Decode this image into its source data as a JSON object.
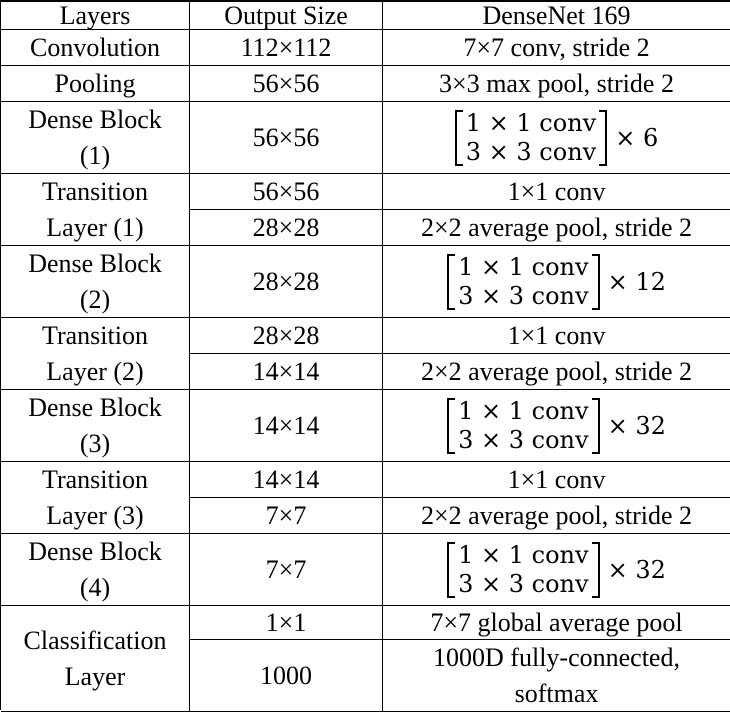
{
  "header": {
    "layers": "Layers",
    "output_size": "Output Size",
    "model": "DenseNet 169"
  },
  "rows": {
    "convolution": {
      "layer": "Convolution",
      "size": "112×112",
      "op": "7×7 conv, stride 2"
    },
    "pooling": {
      "layer": "Pooling",
      "size": "56×56",
      "op": "3×3 max pool, stride 2"
    },
    "dense1": {
      "layer_l1": "Dense Block",
      "layer_l2": "(1)",
      "size": "56×56",
      "m1": "1 × 1 conv",
      "m2": "3 × 3 conv",
      "rep": "× 6"
    },
    "trans1": {
      "layer_l1": "Transition",
      "layer_l2": "Layer (1)",
      "size_a": "56×56",
      "op_a": "1×1 conv",
      "size_b": "28×28",
      "op_b": "2×2 average pool, stride 2"
    },
    "dense2": {
      "layer_l1": "Dense Block",
      "layer_l2": "(2)",
      "size": "28×28",
      "m1": "1 × 1 conv",
      "m2": "3 × 3 conv",
      "rep": "× 12"
    },
    "trans2": {
      "layer_l1": "Transition",
      "layer_l2": "Layer (2)",
      "size_a": "28×28",
      "op_a": "1×1 conv",
      "size_b": "14×14",
      "op_b": "2×2 average pool, stride 2"
    },
    "dense3": {
      "layer_l1": "Dense Block",
      "layer_l2": "(3)",
      "size": "14×14",
      "m1": "1 × 1 conv",
      "m2": "3 × 3 conv",
      "rep": "× 32"
    },
    "trans3": {
      "layer_l1": "Transition",
      "layer_l2": "Layer (3)",
      "size_a": "14×14",
      "op_a": "1×1 conv",
      "size_b": "7×7",
      "op_b": "2×2 average pool, stride 2"
    },
    "dense4": {
      "layer_l1": "Dense Block",
      "layer_l2": "(4)",
      "size": "7×7",
      "m1": "1 × 1 conv",
      "m2": "3 × 3 conv",
      "rep": "× 32"
    },
    "classification": {
      "layer_l1": "Classification",
      "layer_l2": "Layer",
      "size_a": "1×1",
      "op_a": "7×7 global average pool",
      "size_b": "1000",
      "op_b_l1": "1000D fully-connected,",
      "op_b_l2": "softmax"
    }
  }
}
